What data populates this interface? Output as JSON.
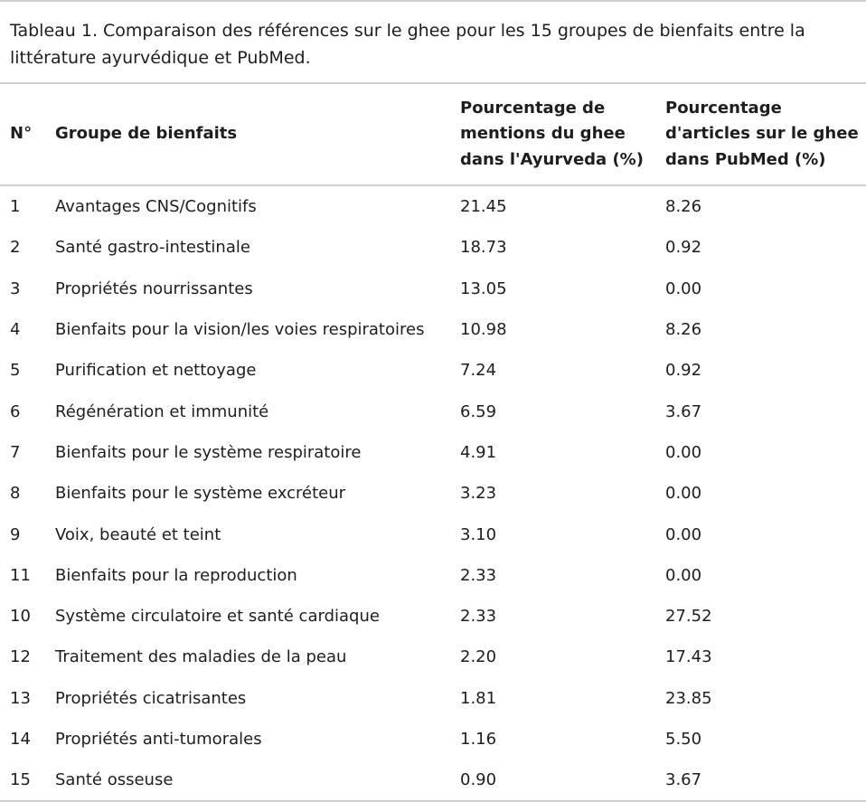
{
  "caption": "Tableau 1. Comparaison des références sur le ghee pour les 15 groupes de bienfaits entre la littérature ayurvédique et PubMed.",
  "table": {
    "headers": {
      "num": "N°",
      "group": "Groupe de bienfaits",
      "ayurveda_line1": "Pourcentage de",
      "ayurveda_line2": "mentions du ghee",
      "ayurveda_line3": "dans l'Ayurveda (%)",
      "pubmed_line1": "Pourcentage",
      "pubmed_line2": "d'articles sur le ghee",
      "pubmed_line3": "dans PubMed (%)"
    },
    "rows": [
      {
        "num": "1",
        "group": "Avantages CNS/Cognitifs",
        "ayurveda": "21.45",
        "pubmed": "8.26"
      },
      {
        "num": "2",
        "group": "Santé gastro-intestinale",
        "ayurveda": "18.73",
        "pubmed": "0.92"
      },
      {
        "num": "3",
        "group": "Propriétés nourrissantes",
        "ayurveda": "13.05",
        "pubmed": "0.00"
      },
      {
        "num": "4",
        "group": "Bienfaits pour la vision/les voies respiratoires",
        "ayurveda": "10.98",
        "pubmed": "8.26"
      },
      {
        "num": "5",
        "group": "Purification et nettoyage",
        "ayurveda": "7.24",
        "pubmed": "0.92"
      },
      {
        "num": "6",
        "group": "Régénération et immunité",
        "ayurveda": "6.59",
        "pubmed": "3.67"
      },
      {
        "num": "7",
        "group": "Bienfaits pour le système respiratoire",
        "ayurveda": "4.91",
        "pubmed": "0.00"
      },
      {
        "num": "8",
        "group": "Bienfaits pour le système excréteur",
        "ayurveda": "3.23",
        "pubmed": "0.00"
      },
      {
        "num": "9",
        "group": "Voix, beauté et teint",
        "ayurveda": "3.10",
        "pubmed": "0.00"
      },
      {
        "num": "11",
        "group": "Bienfaits pour la reproduction",
        "ayurveda": "2.33",
        "pubmed": "0.00"
      },
      {
        "num": "10",
        "group": "Système circulatoire et santé cardiaque",
        "ayurveda": "2.33",
        "pubmed": "27.52"
      },
      {
        "num": "12",
        "group": "Traitement des maladies de la peau",
        "ayurveda": "2.20",
        "pubmed": "17.43"
      },
      {
        "num": "13",
        "group": "Propriétés cicatrisantes",
        "ayurveda": "1.81",
        "pubmed": "23.85"
      },
      {
        "num": "14",
        "group": "Propriétés anti-tumorales",
        "ayurveda": "1.16",
        "pubmed": "5.50"
      },
      {
        "num": "15",
        "group": "Santé osseuse",
        "ayurveda": "0.90",
        "pubmed": "3.67"
      }
    ]
  }
}
